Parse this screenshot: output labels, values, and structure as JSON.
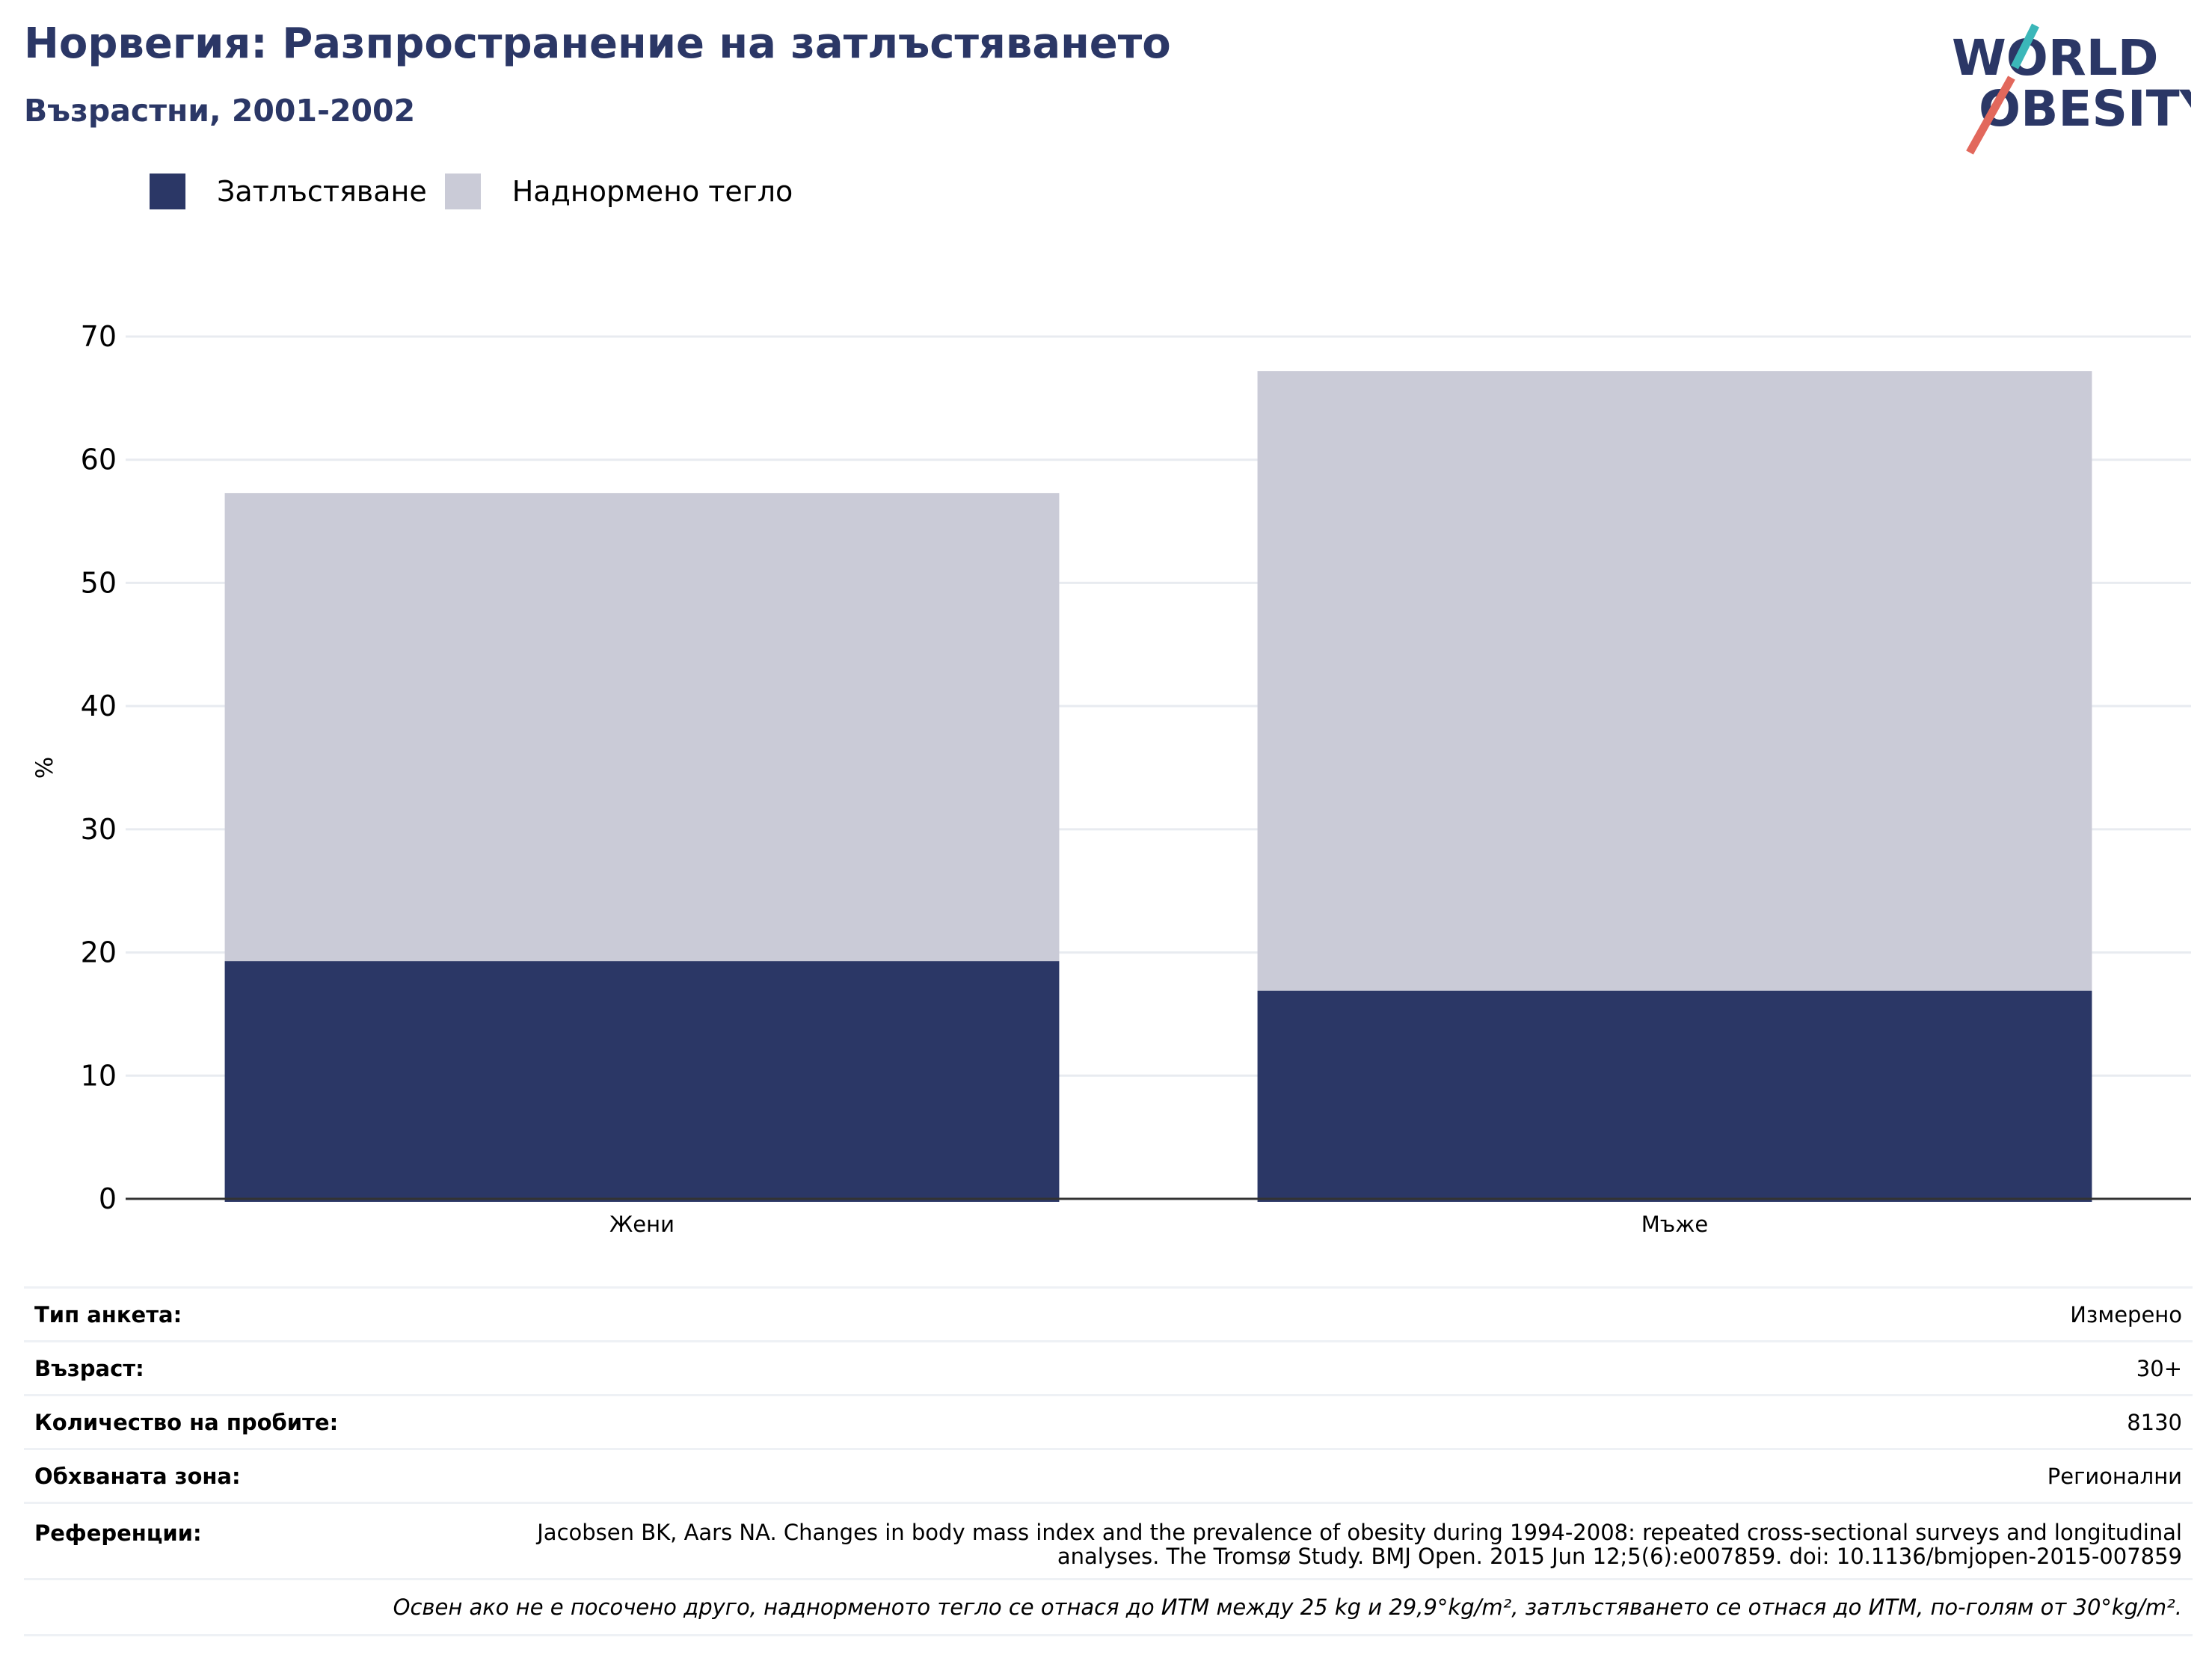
{
  "header": {
    "title": "Норвегия: Разпространение на затлъстяването",
    "subtitle": "Възрастни, 2001-2002"
  },
  "logo": {
    "line1": "WORLD",
    "line2": "OBESITY",
    "icon": "world-obesity-logo"
  },
  "colors": {
    "obesity": "#2b3766",
    "overweight": "#cacbd7",
    "title": "#2b3766",
    "grid": "#e8ebf0",
    "axis": "#333333",
    "logo_teal": "#3bb7b9",
    "logo_coral": "#e2685c"
  },
  "legend": {
    "obesity": "Затлъстяване",
    "overweight": "Наднормено тегло"
  },
  "chart_data": {
    "type": "bar",
    "stacked": true,
    "categories": [
      "Жени",
      "Мъже"
    ],
    "series": [
      {
        "name": "Затлъстяване",
        "values": [
          19.3,
          16.9
        ]
      },
      {
        "name": "Наднормено тегло",
        "values": [
          38.0,
          50.3
        ]
      }
    ],
    "ylabel": "%",
    "ylim": [
      0,
      70
    ],
    "yticks": [
      0,
      10,
      20,
      30,
      40,
      50,
      60,
      70
    ],
    "grid": true,
    "legend_position": "top-left"
  },
  "meta": {
    "survey_type": {
      "label": "Тип анкета:",
      "value": "Измерено"
    },
    "age": {
      "label": "Възраст:",
      "value": "30+"
    },
    "sample_size": {
      "label": "Количество на пробите:",
      "value": "8130"
    },
    "area": {
      "label": "Обхваната зона:",
      "value": "Регионални"
    },
    "references": {
      "label": "Референции:",
      "value": "Jacobsen BK, Aars NA. Changes in body mass index and the prevalence of obesity during 1994-2008: repeated cross-sectional surveys and longitudinal analyses. The Tromsø Study. BMJ Open. 2015 Jun 12;5(6):e007859. doi: 10.1136/bmjopen-2015-007859"
    },
    "note": "Освен ако не е посочено друго, наднорменото тегло се отнася до ИТМ между 25 kg и 29,9°kg/m², затлъстяването се отнася до ИТМ, по-голям от 30°kg/m²."
  }
}
